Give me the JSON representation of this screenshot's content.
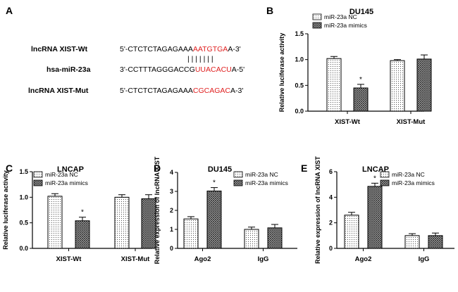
{
  "panel_a": {
    "letter": "A",
    "rows": [
      {
        "label": "lncRNA XIST-Wt",
        "prefix": "5'-CTCTCTAGAGAAA",
        "highlight": "AATGTGA",
        "suffix": "A-3'"
      },
      {
        "label": "hsa-miR-23a",
        "prefix": "3'-CCTTTAGGGACCG",
        "highlight": "UUACACU",
        "suffix": "A-5'"
      },
      {
        "label": "lncRNA XIST-Mut",
        "prefix": "5'-CTCTCTAGAGAAA",
        "highlight": "CGCAGAC",
        "suffix": "A-3'"
      }
    ],
    "pairing_bars": "| | | | | | |"
  },
  "colors": {
    "highlight": "#e02020",
    "axis": "#000000"
  },
  "chart_data": [
    {
      "letter": "B",
      "type": "bar",
      "title": "DU145",
      "ylabel": "Relative luciferase activity",
      "ylim": [
        0,
        1.5
      ],
      "yticks": [
        0.0,
        0.5,
        1.0,
        1.5
      ],
      "yticklabels": [
        "0.0",
        "0.5",
        "1.0",
        "1.5"
      ],
      "categories": [
        "XIST-Wt",
        "XIST-Mut"
      ],
      "series": [
        {
          "name": "miR-23a NC",
          "values": [
            1.02,
            0.98
          ],
          "errors": [
            0.04,
            0.02
          ]
        },
        {
          "name": "miR-23a mimics",
          "values": [
            0.45,
            1.01
          ],
          "errors": [
            0.07,
            0.08
          ]
        }
      ],
      "annotations": [
        {
          "category": 0,
          "series": 1,
          "text": "*"
        }
      ]
    },
    {
      "letter": "C",
      "type": "bar",
      "title": "LNCAP",
      "ylabel": "Relative luciferase activity",
      "ylim": [
        0,
        1.5
      ],
      "yticks": [
        0.0,
        0.5,
        1.0,
        1.5
      ],
      "yticklabels": [
        "0.0",
        "0.5",
        "1.0",
        "1.5"
      ],
      "categories": [
        "XIST-Wt",
        "XIST-Mut"
      ],
      "series": [
        {
          "name": "miR-23a NC",
          "values": [
            1.02,
            1.0
          ],
          "errors": [
            0.05,
            0.05
          ]
        },
        {
          "name": "miR-23a mimics",
          "values": [
            0.54,
            0.97
          ],
          "errors": [
            0.07,
            0.08
          ]
        }
      ],
      "annotations": [
        {
          "category": 0,
          "series": 1,
          "text": "*"
        }
      ]
    },
    {
      "letter": "D",
      "type": "bar",
      "title": "DU145",
      "ylabel": "Relative expression of lncRNA XIST",
      "ylim": [
        0,
        4
      ],
      "yticks": [
        0,
        1,
        2,
        3,
        4
      ],
      "yticklabels": [
        "0",
        "1",
        "2",
        "3",
        "4"
      ],
      "categories": [
        "Ago2",
        "IgG"
      ],
      "series": [
        {
          "name": "miR-23a NC",
          "values": [
            1.55,
            1.0
          ],
          "errors": [
            0.12,
            0.12
          ]
        },
        {
          "name": "miR-23a mimics",
          "values": [
            3.02,
            1.08
          ],
          "errors": [
            0.18,
            0.18
          ]
        }
      ],
      "annotations": [
        {
          "category": 0,
          "series": 1,
          "text": "*"
        }
      ]
    },
    {
      "letter": "E",
      "type": "bar",
      "title": "LNCAP",
      "ylabel": "Relative expression of lncRNA XIST",
      "ylim": [
        0,
        6
      ],
      "yticks": [
        0,
        2,
        4,
        6
      ],
      "yticklabels": [
        "0",
        "2",
        "4",
        "6"
      ],
      "categories": [
        "Ago2",
        "IgG"
      ],
      "series": [
        {
          "name": "miR-23a NC",
          "values": [
            2.6,
            1.0
          ],
          "errors": [
            0.22,
            0.15
          ]
        },
        {
          "name": "miR-23a mimics",
          "values": [
            4.85,
            1.0
          ],
          "errors": [
            0.25,
            0.2
          ]
        }
      ],
      "annotations": [
        {
          "category": 0,
          "series": 1,
          "text": "*"
        }
      ]
    }
  ]
}
